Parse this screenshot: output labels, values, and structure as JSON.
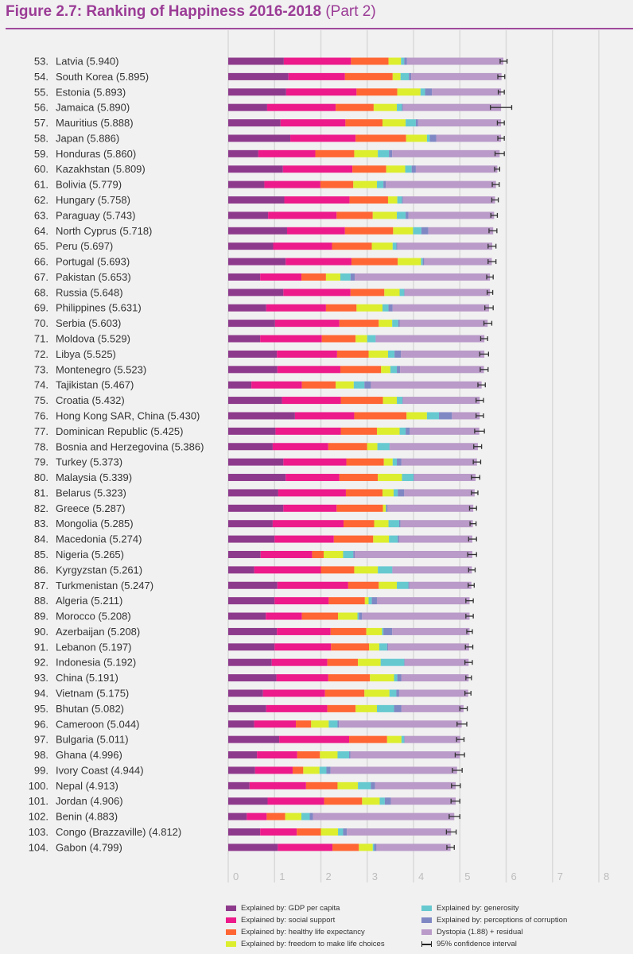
{
  "title": {
    "bold": "Figure 2.7: Ranking of Happiness 2016-2018",
    "normal": "(Part 2)"
  },
  "chart_data": {
    "type": "bar",
    "orientation": "horizontal",
    "stacked": true,
    "xlim": [
      0,
      8
    ],
    "x_ticks": [
      "0",
      "1",
      "2",
      "3",
      "4",
      "5",
      "6",
      "7",
      "8"
    ],
    "grid": true,
    "legend_placement": "bottom",
    "series": [
      {
        "key": "gdp",
        "name": "Explained by: GDP per capita",
        "color": "#8e3a8c"
      },
      {
        "key": "social",
        "name": "Explained by: social support",
        "color": "#ec1a8a"
      },
      {
        "key": "health",
        "name": "Explained by: healthy life expectancy",
        "color": "#ff6633"
      },
      {
        "key": "freedom",
        "name": "Explained by: freedom to make life choices",
        "color": "#dcee2e"
      },
      {
        "key": "generosity",
        "name": "Explained by: generosity",
        "color": "#66c9d0"
      },
      {
        "key": "corruption",
        "name": "Explained by: perceptions of corruption",
        "color": "#8088c4"
      },
      {
        "key": "dystopia",
        "name": "Dystopia (1.88) + residual",
        "color": "#b99ac8"
      }
    ],
    "ci_legend": "95% confidence interval",
    "rows": [
      {
        "rank": "53.",
        "country": "Latvia",
        "score": "5.940",
        "v": [
          1.2,
          1.45,
          0.81,
          0.27,
          0.07,
          0.06,
          2.08
        ],
        "ci": [
          5.87,
          6.02
        ]
      },
      {
        "rank": "54.",
        "country": "South Korea",
        "score": "5.895",
        "v": [
          1.3,
          1.22,
          1.03,
          0.17,
          0.18,
          0.05,
          1.95
        ],
        "ci": [
          5.82,
          5.97
        ]
      },
      {
        "rank": "55.",
        "country": "Estonia",
        "score": "5.893",
        "v": [
          1.25,
          1.52,
          0.88,
          0.5,
          0.1,
          0.15,
          1.49
        ],
        "ci": [
          5.83,
          5.96
        ]
      },
      {
        "rank": "56.",
        "country": "Jamaica",
        "score": "5.890",
        "v": [
          0.84,
          1.48,
          0.82,
          0.5,
          0.11,
          0.02,
          2.12
        ],
        "ci": [
          5.66,
          6.12
        ]
      },
      {
        "rank": "57.",
        "country": "Mauritius",
        "score": "5.888",
        "v": [
          1.13,
          1.4,
          0.8,
          0.5,
          0.22,
          0.05,
          1.79
        ],
        "ci": [
          5.81,
          5.96
        ]
      },
      {
        "rank": "58.",
        "country": "Japan",
        "score": "5.886",
        "v": [
          1.34,
          1.41,
          1.09,
          0.45,
          0.06,
          0.14,
          1.4
        ],
        "ci": [
          5.82,
          5.96
        ]
      },
      {
        "rank": "59.",
        "country": "Honduras",
        "score": "5.860",
        "v": [
          0.65,
          1.23,
          0.84,
          0.51,
          0.24,
          0.07,
          2.32
        ],
        "ci": [
          5.76,
          5.96
        ]
      },
      {
        "rank": "60.",
        "country": "Kazakhstan",
        "score": "5.809",
        "v": [
          1.18,
          1.5,
          0.73,
          0.41,
          0.14,
          0.09,
          1.76
        ],
        "ci": [
          5.75,
          5.86
        ]
      },
      {
        "rank": "61.",
        "country": "Bolivia",
        "score": "5.779",
        "v": [
          0.78,
          1.21,
          0.71,
          0.51,
          0.14,
          0.05,
          2.38
        ],
        "ci": [
          5.7,
          5.85
        ]
      },
      {
        "rank": "62.",
        "country": "Hungary",
        "score": "5.758",
        "v": [
          1.21,
          1.41,
          0.83,
          0.2,
          0.1,
          0.02,
          1.99
        ],
        "ci": [
          5.69,
          5.83
        ]
      },
      {
        "rank": "63.",
        "country": "Paraguay",
        "score": "5.743",
        "v": [
          0.86,
          1.48,
          0.78,
          0.52,
          0.19,
          0.06,
          1.85
        ],
        "ci": [
          5.67,
          5.81
        ]
      },
      {
        "rank": "64.",
        "country": "North Cyprus",
        "score": "5.718",
        "v": [
          1.27,
          1.25,
          1.04,
          0.43,
          0.18,
          0.15,
          1.4
        ],
        "ci": [
          5.63,
          5.8
        ]
      },
      {
        "rank": "65.",
        "country": "Peru",
        "score": "5.697",
        "v": [
          0.97,
          1.27,
          0.86,
          0.45,
          0.08,
          0.02,
          2.05
        ],
        "ci": [
          5.61,
          5.78
        ]
      },
      {
        "rank": "66.",
        "country": "Portugal",
        "score": "5.693",
        "v": [
          1.24,
          1.42,
          1.0,
          0.5,
          0.04,
          0.03,
          1.46
        ],
        "ci": [
          5.61,
          5.78
        ]
      },
      {
        "rank": "67.",
        "country": "Pakistan",
        "score": "5.653",
        "v": [
          0.69,
          0.89,
          0.53,
          0.31,
          0.22,
          0.09,
          2.92
        ],
        "ci": [
          5.58,
          5.72
        ]
      },
      {
        "rank": "68.",
        "country": "Russia",
        "score": "5.648",
        "v": [
          1.19,
          1.45,
          0.73,
          0.33,
          0.1,
          0.01,
          1.84
        ],
        "ci": [
          5.59,
          5.71
        ]
      },
      {
        "rank": "69.",
        "country": "Philippines",
        "score": "5.631",
        "v": [
          0.82,
          1.29,
          0.66,
          0.56,
          0.13,
          0.09,
          2.08
        ],
        "ci": [
          5.54,
          5.72
        ]
      },
      {
        "rank": "70.",
        "country": "Serbia",
        "score": "5.603",
        "v": [
          1.01,
          1.39,
          0.85,
          0.29,
          0.13,
          0.03,
          1.9
        ],
        "ci": [
          5.52,
          5.69
        ]
      },
      {
        "rank": "71.",
        "country": "Moldova",
        "score": "5.529",
        "v": [
          0.69,
          1.33,
          0.73,
          0.25,
          0.18,
          0.01,
          2.34
        ],
        "ci": [
          5.45,
          5.6
        ]
      },
      {
        "rank": "72.",
        "country": "Libya",
        "score": "5.525",
        "v": [
          1.05,
          1.3,
          0.68,
          0.42,
          0.14,
          0.14,
          1.8
        ],
        "ci": [
          5.43,
          5.62
        ]
      },
      {
        "rank": "73.",
        "country": "Montenegro",
        "score": "5.523",
        "v": [
          1.06,
          1.36,
          0.88,
          0.2,
          0.14,
          0.07,
          1.81
        ],
        "ci": [
          5.44,
          5.61
        ]
      },
      {
        "rank": "74.",
        "country": "Tajikistan",
        "score": "5.467",
        "v": [
          0.5,
          1.09,
          0.73,
          0.39,
          0.23,
          0.14,
          2.39
        ],
        "ci": [
          5.39,
          5.55
        ]
      },
      {
        "rank": "75.",
        "country": "Croatia",
        "score": "5.432",
        "v": [
          1.16,
          1.27,
          0.91,
          0.3,
          0.12,
          0.01,
          1.66
        ],
        "ci": [
          5.35,
          5.51
        ]
      },
      {
        "rank": "76.",
        "country": "Hong Kong SAR, China",
        "score": "5.430",
        "v": [
          1.44,
          1.28,
          1.13,
          0.44,
          0.26,
          0.28,
          0.6
        ],
        "ci": [
          5.35,
          5.51
        ]
      },
      {
        "rank": "77.",
        "country": "Dominican Republic",
        "score": "5.425",
        "v": [
          1.02,
          1.41,
          0.78,
          0.49,
          0.13,
          0.09,
          1.5
        ],
        "ci": [
          5.32,
          5.53
        ]
      },
      {
        "rank": "78.",
        "country": "Bosnia and Herzegovina",
        "score": "5.386",
        "v": [
          0.96,
          1.2,
          0.84,
          0.22,
          0.26,
          0.01,
          1.9
        ],
        "ci": [
          5.3,
          5.47
        ]
      },
      {
        "rank": "79.",
        "country": "Turkey",
        "score": "5.373",
        "v": [
          1.19,
          1.36,
          0.81,
          0.19,
          0.09,
          0.1,
          1.63
        ],
        "ci": [
          5.29,
          5.45
        ]
      },
      {
        "rank": "80.",
        "country": "Malaysia",
        "score": "5.339",
        "v": [
          1.24,
          1.16,
          0.83,
          0.52,
          0.25,
          0.01,
          1.33
        ],
        "ci": [
          5.25,
          5.43
        ]
      },
      {
        "rank": "81.",
        "country": "Belarus",
        "score": "5.323",
        "v": [
          1.08,
          1.46,
          0.79,
          0.24,
          0.09,
          0.14,
          1.52
        ],
        "ci": [
          5.25,
          5.39
        ]
      },
      {
        "rank": "82.",
        "country": "Greece",
        "score": "5.287",
        "v": [
          1.19,
          1.15,
          1.0,
          0.06,
          0.01,
          0.03,
          1.85
        ],
        "ci": [
          5.21,
          5.36
        ]
      },
      {
        "rank": "83.",
        "country": "Mongolia",
        "score": "5.285",
        "v": [
          0.96,
          1.53,
          0.66,
          0.31,
          0.23,
          0.03,
          1.56
        ],
        "ci": [
          5.22,
          5.35
        ]
      },
      {
        "rank": "84.",
        "country": "Macedonia",
        "score": "5.274",
        "v": [
          1.0,
          1.28,
          0.85,
          0.34,
          0.19,
          0.03,
          1.58
        ],
        "ci": [
          5.19,
          5.36
        ]
      },
      {
        "rank": "85.",
        "country": "Nigeria",
        "score": "5.265",
        "v": [
          0.7,
          1.11,
          0.25,
          0.42,
          0.22,
          0.03,
          2.54
        ],
        "ci": [
          5.17,
          5.36
        ]
      },
      {
        "rank": "86.",
        "country": "Kyrgyzstan",
        "score": "5.261",
        "v": [
          0.56,
          1.44,
          0.72,
          0.51,
          0.31,
          0.01,
          1.71
        ],
        "ci": [
          5.19,
          5.33
        ]
      },
      {
        "rank": "87.",
        "country": "Turkmenistan",
        "score": "5.247",
        "v": [
          1.06,
          1.53,
          0.66,
          0.39,
          0.25,
          0.02,
          1.34
        ],
        "ci": [
          5.18,
          5.31
        ]
      },
      {
        "rank": "88.",
        "country": "Algeria",
        "score": "5.211",
        "v": [
          1.0,
          1.17,
          0.78,
          0.08,
          0.07,
          0.11,
          2.0
        ],
        "ci": [
          5.13,
          5.29
        ]
      },
      {
        "rank": "89.",
        "country": "Morocco",
        "score": "5.208",
        "v": [
          0.81,
          0.78,
          0.78,
          0.42,
          0.03,
          0.07,
          2.32
        ],
        "ci": [
          5.13,
          5.29
        ]
      },
      {
        "rank": "90.",
        "country": "Azerbaijan",
        "score": "5.208",
        "v": [
          1.05,
          1.16,
          0.77,
          0.34,
          0.03,
          0.19,
          1.67
        ],
        "ci": [
          5.15,
          5.27
        ]
      },
      {
        "rank": "91.",
        "country": "Lebanon",
        "score": "5.197",
        "v": [
          1.0,
          1.22,
          0.82,
          0.22,
          0.17,
          0.02,
          1.75
        ],
        "ci": [
          5.12,
          5.28
        ]
      },
      {
        "rank": "92.",
        "country": "Indonesia",
        "score": "5.192",
        "v": [
          0.94,
          1.2,
          0.66,
          0.49,
          0.51,
          0.01,
          1.38
        ],
        "ci": [
          5.11,
          5.27
        ]
      },
      {
        "rank": "93.",
        "country": "China",
        "score": "5.191",
        "v": [
          1.04,
          1.12,
          0.9,
          0.52,
          0.07,
          0.09,
          1.45
        ],
        "ci": [
          5.13,
          5.25
        ]
      },
      {
        "rank": "94.",
        "country": "Vietnam",
        "score": "5.175",
        "v": [
          0.75,
          1.34,
          0.85,
          0.54,
          0.15,
          0.06,
          1.49
        ],
        "ci": [
          5.11,
          5.24
        ]
      },
      {
        "rank": "95.",
        "country": "Bhutan",
        "score": "5.082",
        "v": [
          0.82,
          1.32,
          0.61,
          0.46,
          0.37,
          0.16,
          1.34
        ],
        "ci": [
          5.0,
          5.16
        ]
      },
      {
        "rank": "96.",
        "country": "Cameroon",
        "score": "5.044",
        "v": [
          0.56,
          0.9,
          0.33,
          0.38,
          0.19,
          0.03,
          2.65
        ],
        "ci": [
          4.94,
          5.15
        ]
      },
      {
        "rank": "97.",
        "country": "Bulgaria",
        "score": "5.011",
        "v": [
          1.1,
          1.51,
          0.82,
          0.31,
          0.06,
          0.01,
          1.2
        ],
        "ci": [
          4.93,
          5.09
        ]
      },
      {
        "rank": "98.",
        "country": "Ghana",
        "score": "4.996",
        "v": [
          0.62,
          0.87,
          0.49,
          0.38,
          0.25,
          0.03,
          2.36
        ],
        "ci": [
          4.9,
          5.1
        ]
      },
      {
        "rank": "99.",
        "country": "Ivory Coast",
        "score": "4.944",
        "v": [
          0.58,
          0.81,
          0.23,
          0.35,
          0.15,
          0.09,
          2.73
        ],
        "ci": [
          4.84,
          5.05
        ]
      },
      {
        "rank": "100.",
        "country": "Nepal",
        "score": "4.913",
        "v": [
          0.46,
          1.22,
          0.68,
          0.44,
          0.28,
          0.09,
          1.74
        ],
        "ci": [
          4.82,
          5.01
        ]
      },
      {
        "rank": "101.",
        "country": "Jordan",
        "score": "4.906",
        "v": [
          0.85,
          1.22,
          0.82,
          0.38,
          0.11,
          0.13,
          1.4
        ],
        "ci": [
          4.81,
          5.0
        ]
      },
      {
        "rank": "102.",
        "country": "Benin",
        "score": "4.883",
        "v": [
          0.4,
          0.43,
          0.4,
          0.35,
          0.18,
          0.07,
          3.05
        ],
        "ci": [
          4.77,
          5.0
        ]
      },
      {
        "rank": "103.",
        "country": "Congo (Brazzaville)",
        "score": "4.812",
        "v": [
          0.69,
          0.79,
          0.52,
          0.37,
          0.11,
          0.08,
          2.25
        ],
        "ci": [
          4.71,
          4.92
        ]
      },
      {
        "rank": "104.",
        "country": "Gabon",
        "score": "4.799",
        "v": [
          1.07,
          1.18,
          0.57,
          0.3,
          0.03,
          0.05,
          1.6
        ],
        "ci": [
          4.72,
          4.88
        ]
      }
    ]
  }
}
